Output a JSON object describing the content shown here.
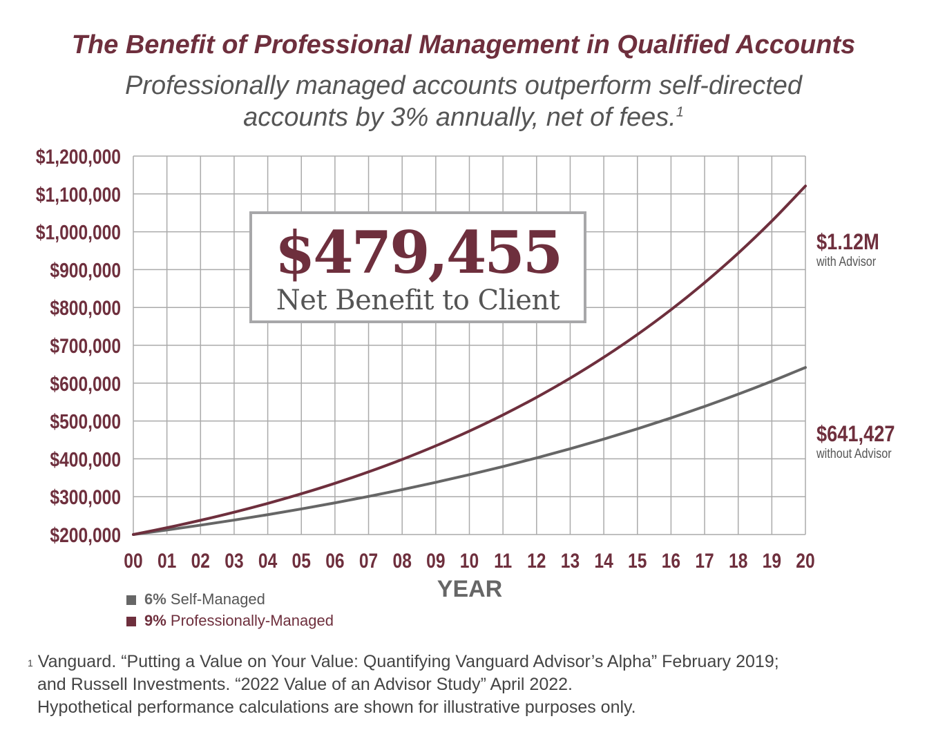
{
  "chart_data": {
    "type": "line",
    "title": "The Benefit of Professional Management in Qualified Accounts",
    "subtitle_line1": "Professionally managed accounts outperform self-directed",
    "subtitle_line2": "accounts by 3% annually, net of fees.",
    "subtitle_footnote_mark": "1",
    "xlabel": "YEAR",
    "ylabel": "",
    "x": [
      "00",
      "01",
      "02",
      "03",
      "04",
      "05",
      "06",
      "07",
      "08",
      "09",
      "10",
      "11",
      "12",
      "13",
      "14",
      "15",
      "16",
      "17",
      "18",
      "19",
      "20"
    ],
    "ylim": [
      200000,
      1200000
    ],
    "yticks": [
      "$1,200,000",
      "$1,100,000",
      "$1,000,000",
      "$900,000",
      "$800,000",
      "$700,000",
      "$600,000",
      "$500,000",
      "$400,000",
      "$300,000",
      "$200,000"
    ],
    "ytick_values": [
      1200000,
      1100000,
      1000000,
      900000,
      800000,
      700000,
      600000,
      500000,
      400000,
      300000,
      200000
    ],
    "grid": true,
    "legend_position": "bottom-left",
    "series": [
      {
        "name": "Self-Managed",
        "rate": "6%",
        "color": "#666666",
        "values": [
          200000,
          212000,
          224720,
          238203,
          252495,
          267645,
          283704,
          300726,
          318770,
          337896,
          358170,
          379660,
          402440,
          426586,
          452181,
          479312,
          508070,
          538555,
          570868,
          605120,
          641427
        ]
      },
      {
        "name": "Professionally-Managed",
        "rate": "9%",
        "color": "#6e2f3d",
        "values": [
          200000,
          218000,
          237620,
          259006,
          282316,
          307725,
          335420,
          365608,
          398512,
          434378,
          473473,
          516085,
          562533,
          613161,
          668345,
          728496,
          794061,
          865526,
          943424,
          1028332,
          1120882
        ]
      }
    ],
    "annotations": {
      "benefit_value": "$479,455",
      "benefit_label": "Net Benefit to Client",
      "with_value": "$1.12M",
      "with_label": "with Advisor",
      "without_value": "$641,427",
      "without_label": "without Advisor"
    }
  },
  "footnote": {
    "mark": "1",
    "line1": "Vanguard. “Putting a Value on Your Value: Quantifying Vanguard Advisor’s Alpha” February 2019;",
    "line2": "and Russell Investments. “2022 Value of an Advisor Study” April 2022.",
    "line3": "Hypothetical performance calculations are shown for illustrative purposes only."
  }
}
